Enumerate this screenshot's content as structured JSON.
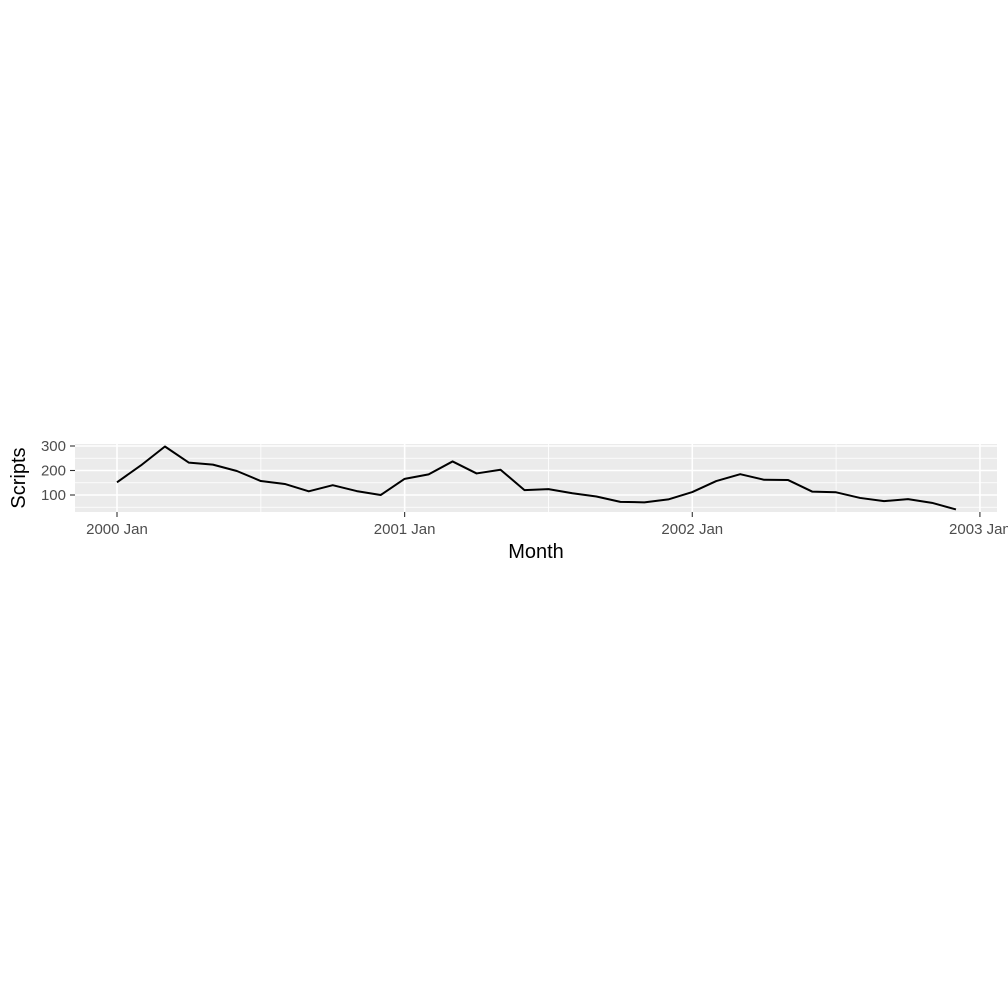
{
  "chart_data": {
    "type": "line",
    "title": "",
    "xlabel": "Month",
    "ylabel": "Scripts",
    "x_ticks": [
      "2000 Jan",
      "2001 Jan",
      "2002 Jan",
      "2003 Jan"
    ],
    "y_ticks": [
      100,
      200,
      300
    ],
    "grid": true,
    "legend": "none",
    "line_color": "#000000",
    "panel_color": "#ebebeb",
    "x": [
      "2000 Jan",
      "2000 Feb",
      "2000 Mar",
      "2000 Apr",
      "2000 May",
      "2000 Jun",
      "2000 Jul",
      "2000 Aug",
      "2000 Sep",
      "2000 Oct",
      "2000 Nov",
      "2000 Dec",
      "2001 Jan",
      "2001 Feb",
      "2001 Mar",
      "2001 Apr",
      "2001 May",
      "2001 Jun",
      "2001 Jul",
      "2001 Aug",
      "2001 Sep",
      "2001 Oct",
      "2001 Nov",
      "2001 Dec",
      "2002 Jan",
      "2002 Feb",
      "2002 Mar",
      "2002 Apr",
      "2002 May",
      "2002 Jun",
      "2002 Jul",
      "2002 Aug",
      "2002 Sep",
      "2002 Oct",
      "2002 Nov",
      "2002 Dec"
    ],
    "series": [
      {
        "values": [
          152,
          221,
          298,
          232,
          224,
          198,
          157,
          145,
          115,
          140,
          116,
          100,
          166,
          184,
          237,
          188,
          203,
          120,
          124,
          107,
          94,
          72,
          70,
          82,
          112,
          157,
          185,
          162,
          161,
          114,
          111,
          88,
          75,
          83,
          68,
          41
        ]
      }
    ]
  }
}
